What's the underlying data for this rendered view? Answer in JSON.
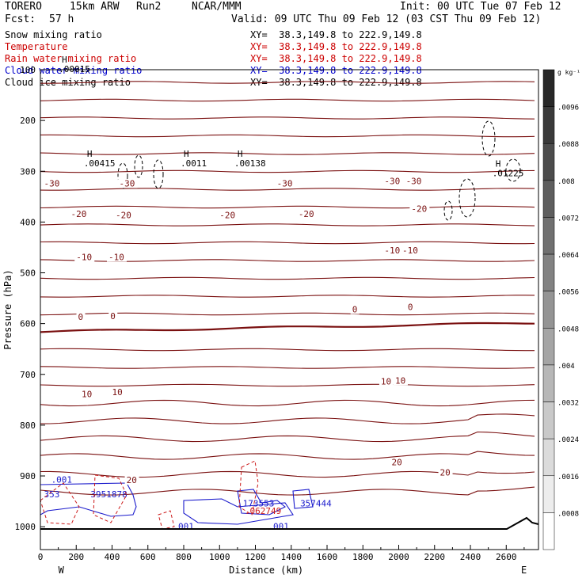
{
  "header": {
    "model": "TORERO",
    "resolution": "15km ARW",
    "run": "Run2",
    "center": "NCAR/MMM",
    "init": "Init: 00 UTC Tue 07 Feb 12",
    "forecast": "Fcst:",
    "forecast_hours": "57 h",
    "valid": "Valid: 09 UTC Thu 09 Feb 12 (03 CST Thu 09 Feb 12)"
  },
  "fields": [
    {
      "name": "Snow mixing ratio",
      "xy": "XY=  38.3,149.8 to 222.9,149.8",
      "color": "#000000"
    },
    {
      "name": "Temperature",
      "xy": "XY=  38.3,149.8 to 222.9,149.8",
      "color": "#cc0000"
    },
    {
      "name": "Rain water mixing ratio",
      "xy": "XY=  38.3,149.8 to 222.9,149.8",
      "color": "#cc0000"
    },
    {
      "name": "Cloud water mixing ratio",
      "xy": "XY=  38.3,149.8 to 222.9,149.8",
      "color": "#0000cc"
    },
    {
      "name": "Cloud ice mixing ratio",
      "xy": "XY=  38.3,149.8 to 222.9,149.8",
      "color": "#000000"
    }
  ],
  "chart_data": {
    "type": "contour-cross-section",
    "xlabel": "Distance (km)",
    "ylabel": "Pressure (hPa)",
    "x_ticks": [
      0,
      200,
      400,
      600,
      800,
      1000,
      1200,
      1400,
      1600,
      1800,
      2000,
      2200,
      2400,
      2600
    ],
    "xlim": [
      0,
      2780
    ],
    "y_ticks": [
      100,
      200,
      300,
      400,
      500,
      600,
      700,
      800,
      900,
      1000
    ],
    "ylim": [
      100,
      1045
    ],
    "x_end_labels": {
      "left": "W",
      "right": "E"
    },
    "colorbar": {
      "unit": "g kg⁻¹",
      "ticks": [
        ".0096",
        ".0088",
        ".008",
        ".0072",
        ".0064",
        ".0056",
        ".0048",
        ".004",
        ".0032",
        ".0024",
        ".0016",
        ".0008"
      ]
    },
    "temperature_labels": [
      {
        "x": -320,
        "y": 330,
        "text": "-30"
      },
      {
        "x": 440,
        "y": 330,
        "text": "-30"
      },
      {
        "x": 1320,
        "y": 330,
        "text": "-30"
      },
      {
        "x": 1920,
        "y": 325,
        "text": "-30"
      },
      {
        "x": 2040,
        "y": 325,
        "text": "-30"
      },
      {
        "x": 170,
        "y": 390,
        "text": "-20"
      },
      {
        "x": 420,
        "y": 392,
        "text": "-20"
      },
      {
        "x": 1000,
        "y": 392,
        "text": "-20"
      },
      {
        "x": 1440,
        "y": 390,
        "text": "-20"
      },
      {
        "x": 2070,
        "y": 380,
        "text": "-20"
      },
      {
        "x": 200,
        "y": 475,
        "text": "-10"
      },
      {
        "x": 380,
        "y": 475,
        "text": "-10"
      },
      {
        "x": 1920,
        "y": 462,
        "text": "-10"
      },
      {
        "x": 2020,
        "y": 462,
        "text": "-10"
      },
      {
        "x": 210,
        "y": 593,
        "text": "0"
      },
      {
        "x": 390,
        "y": 591,
        "text": "0"
      },
      {
        "x": 1740,
        "y": 578,
        "text": "0"
      },
      {
        "x": 2050,
        "y": 573,
        "text": "0"
      },
      {
        "x": 230,
        "y": 745,
        "text": "10"
      },
      {
        "x": 400,
        "y": 741,
        "text": "10"
      },
      {
        "x": 1900,
        "y": 720,
        "text": "10"
      },
      {
        "x": 1980,
        "y": 718,
        "text": "10"
      },
      {
        "x": 480,
        "y": 914,
        "text": "20"
      },
      {
        "x": 1960,
        "y": 879,
        "text": "20"
      },
      {
        "x": 2230,
        "y": 899,
        "text": "20"
      }
    ],
    "snow_maxima": [
      {
        "x": 260,
        "y": 290,
        "value": ".00415"
      },
      {
        "x": 800,
        "y": 290,
        "value": ".0011"
      },
      {
        "x": 1100,
        "y": 290,
        "value": ".00138"
      },
      {
        "x": 2540,
        "y": 310,
        "value": ".01225"
      },
      {
        "x": 120,
        "y": 105,
        "value": ".00015"
      }
    ],
    "cloud_labels": [
      {
        "x": 60,
        "y": 913,
        "text": ".001"
      },
      {
        "x": 20,
        "y": 942,
        "text": "353"
      },
      {
        "x": 280,
        "y": 942,
        "text": "3951878"
      },
      {
        "x": 1130,
        "y": 960,
        "text": "173553"
      },
      {
        "x": 1450,
        "y": 960,
        "text": "357444"
      },
      {
        "x": 740,
        "y": 1005,
        "text": ".001"
      },
      {
        "x": 1270,
        "y": 1005,
        "text": ".001"
      }
    ],
    "rain_labels": [
      {
        "x": 1140,
        "y": 975,
        "text": ".062749"
      }
    ],
    "grid": false
  }
}
